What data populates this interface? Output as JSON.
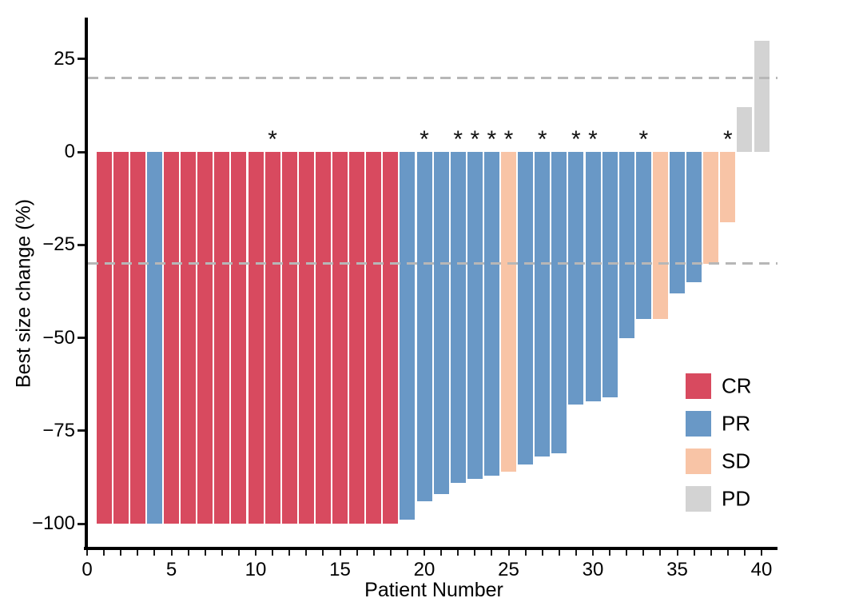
{
  "figure": {
    "xlabel": "Patient Number",
    "ylabel": "Best size change (%)"
  },
  "chart_data": {
    "type": "bar",
    "subtype": "waterfall-plot",
    "title": "",
    "xlabel": "Patient Number",
    "ylabel": "Best size change (%)",
    "xlim": [
      0,
      41
    ],
    "ylim": [
      -105,
      35
    ],
    "grid": false,
    "x_major_ticks": [
      0,
      5,
      10,
      15,
      20,
      25,
      30,
      35,
      40
    ],
    "x_minor_tick_step": 1,
    "x_minor_tick_range": [
      0,
      40
    ],
    "y_ticks": [
      {
        "value": 25,
        "label": "25"
      },
      {
        "value": 0,
        "label": "0"
      },
      {
        "value": -25,
        "label": "−25"
      },
      {
        "value": -50,
        "label": "−50"
      },
      {
        "value": -75,
        "label": "−75"
      },
      {
        "value": -100,
        "label": "−100"
      }
    ],
    "reference_lines": [
      {
        "y": 20,
        "style": "dashed",
        "color": "#B7B7B7",
        "name": "reference-line-plus-20"
      },
      {
        "y": -30,
        "style": "dashed",
        "color": "#B7B7B7",
        "name": "reference-line-minus-30"
      }
    ],
    "annotation_marker": "*",
    "categories_colors": {
      "CR": "#D84A5F",
      "PR": "#6998C6",
      "SD": "#F8C4A6",
      "PD": "#D3D3D3"
    },
    "patients": [
      {
        "patient": 1,
        "value": -100,
        "response": "CR",
        "asterisk": false
      },
      {
        "patient": 2,
        "value": -100,
        "response": "CR",
        "asterisk": false
      },
      {
        "patient": 3,
        "value": -100,
        "response": "CR",
        "asterisk": false
      },
      {
        "patient": 4,
        "value": -100,
        "response": "PR",
        "asterisk": false
      },
      {
        "patient": 5,
        "value": -100,
        "response": "CR",
        "asterisk": false
      },
      {
        "patient": 6,
        "value": -100,
        "response": "CR",
        "asterisk": false
      },
      {
        "patient": 7,
        "value": -100,
        "response": "CR",
        "asterisk": false
      },
      {
        "patient": 8,
        "value": -100,
        "response": "CR",
        "asterisk": false
      },
      {
        "patient": 9,
        "value": -100,
        "response": "CR",
        "asterisk": false
      },
      {
        "patient": 10,
        "value": -100,
        "response": "CR",
        "asterisk": false
      },
      {
        "patient": 11,
        "value": -100,
        "response": "CR",
        "asterisk": true
      },
      {
        "patient": 12,
        "value": -100,
        "response": "CR",
        "asterisk": false
      },
      {
        "patient": 13,
        "value": -100,
        "response": "CR",
        "asterisk": false
      },
      {
        "patient": 14,
        "value": -100,
        "response": "CR",
        "asterisk": false
      },
      {
        "patient": 15,
        "value": -100,
        "response": "CR",
        "asterisk": false
      },
      {
        "patient": 16,
        "value": -100,
        "response": "CR",
        "asterisk": false
      },
      {
        "patient": 17,
        "value": -100,
        "response": "CR",
        "asterisk": false
      },
      {
        "patient": 18,
        "value": -100,
        "response": "CR",
        "asterisk": false
      },
      {
        "patient": 19,
        "value": -99,
        "response": "PR",
        "asterisk": false
      },
      {
        "patient": 20,
        "value": -94,
        "response": "PR",
        "asterisk": true
      },
      {
        "patient": 21,
        "value": -92,
        "response": "PR",
        "asterisk": false
      },
      {
        "patient": 22,
        "value": -89,
        "response": "PR",
        "asterisk": true
      },
      {
        "patient": 23,
        "value": -88,
        "response": "PR",
        "asterisk": true
      },
      {
        "patient": 24,
        "value": -87,
        "response": "PR",
        "asterisk": true
      },
      {
        "patient": 25,
        "value": -86,
        "response": "SD",
        "asterisk": true
      },
      {
        "patient": 26,
        "value": -84,
        "response": "PR",
        "asterisk": false
      },
      {
        "patient": 27,
        "value": -82,
        "response": "PR",
        "asterisk": true
      },
      {
        "patient": 28,
        "value": -81,
        "response": "PR",
        "asterisk": false
      },
      {
        "patient": 29,
        "value": -68,
        "response": "PR",
        "asterisk": true
      },
      {
        "patient": 30,
        "value": -67,
        "response": "PR",
        "asterisk": true
      },
      {
        "patient": 31,
        "value": -66,
        "response": "PR",
        "asterisk": false
      },
      {
        "patient": 32,
        "value": -50,
        "response": "PR",
        "asterisk": false
      },
      {
        "patient": 33,
        "value": -45,
        "response": "PR",
        "asterisk": true
      },
      {
        "patient": 34,
        "value": -45,
        "response": "SD",
        "asterisk": false
      },
      {
        "patient": 35,
        "value": -38,
        "response": "PR",
        "asterisk": false
      },
      {
        "patient": 36,
        "value": -35,
        "response": "PR",
        "asterisk": false
      },
      {
        "patient": 37,
        "value": -30,
        "response": "SD",
        "asterisk": false
      },
      {
        "patient": 38,
        "value": -19,
        "response": "SD",
        "asterisk": true
      },
      {
        "patient": 39,
        "value": 12,
        "response": "PD",
        "asterisk": false
      },
      {
        "patient": 40,
        "value": 30,
        "response": "PD",
        "asterisk": false
      }
    ],
    "legend_position": "inside-right-lower"
  },
  "legend": {
    "items": [
      {
        "label": "CR",
        "color_key": "CR"
      },
      {
        "label": "PR",
        "color_key": "PR"
      },
      {
        "label": "SD",
        "color_key": "SD"
      },
      {
        "label": "PD",
        "color_key": "PD"
      }
    ]
  },
  "colors": {
    "axis": "#000000",
    "text": "#000000",
    "dashed_line": "#B7B7B7",
    "background": "#FFFFFF"
  }
}
